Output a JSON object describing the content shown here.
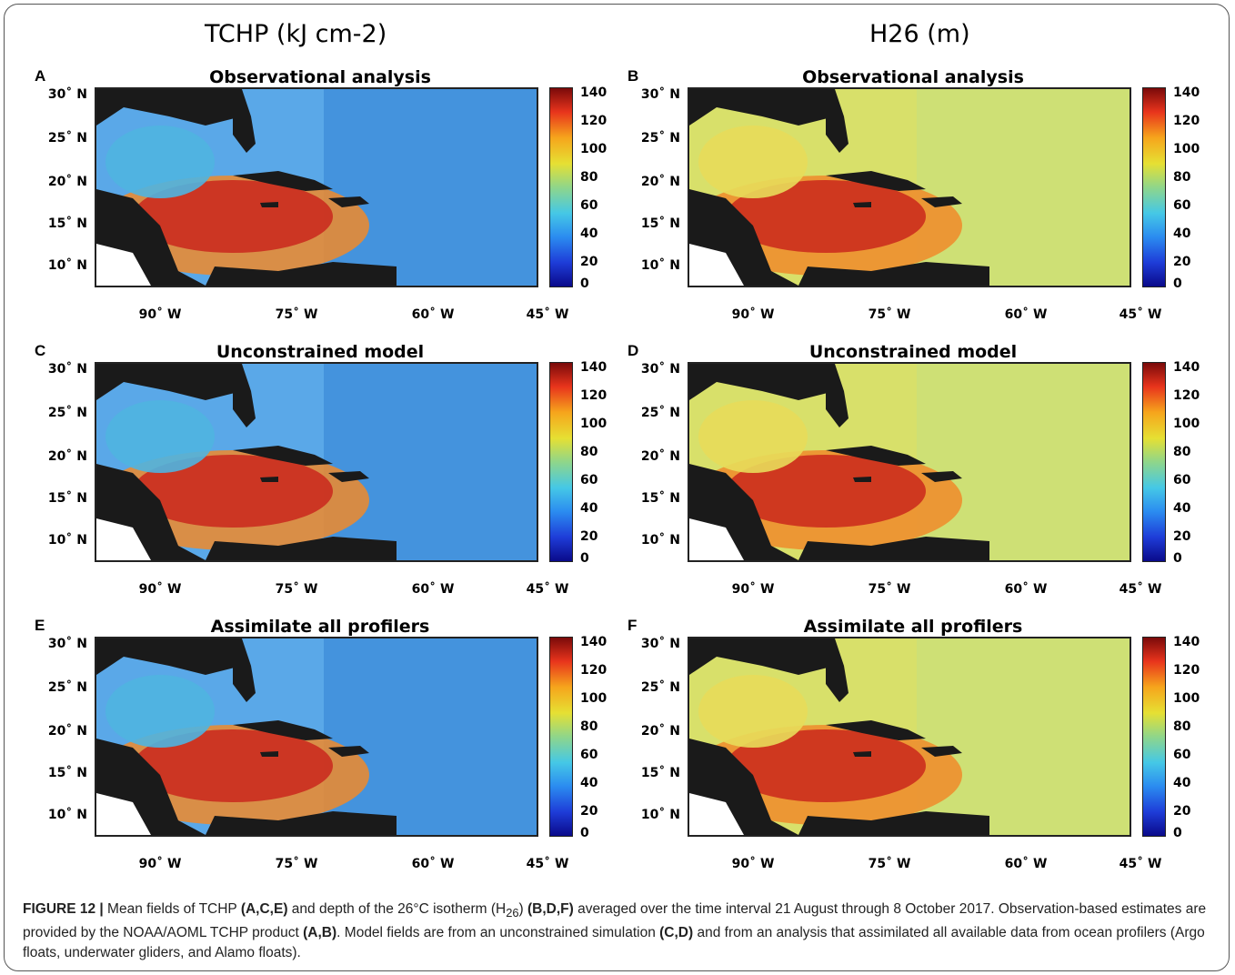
{
  "column_titles": {
    "left": "TCHP (kJ cm-2)",
    "right": "H26 (m)"
  },
  "panels": [
    {
      "label": "A",
      "title": "Observational analysis"
    },
    {
      "label": "B",
      "title": "Observational analysis"
    },
    {
      "label": "C",
      "title": "Unconstrained model"
    },
    {
      "label": "D",
      "title": "Unconstrained model"
    },
    {
      "label": "E",
      "title": "Assimilate all profilers"
    },
    {
      "label": "F",
      "title": "Assimilate all profilers"
    }
  ],
  "lat_ticks": [
    "30˚ N",
    "25˚ N",
    "20˚ N",
    "15˚ N",
    "10˚ N"
  ],
  "lon_ticks": [
    "90˚ W",
    "75˚ W",
    "60˚ W",
    "45˚ W"
  ],
  "colorbar_ticks": [
    "140",
    "120",
    "100",
    "80",
    "60",
    "40",
    "20",
    "0"
  ],
  "colorbar": {
    "min": 0,
    "max": 140,
    "colors": [
      "#0a0a8a",
      "#1e3cd8",
      "#2b8cf0",
      "#45c8e6",
      "#8fd68a",
      "#e6e033",
      "#f6a51c",
      "#e8341c",
      "#7a0a0a"
    ]
  },
  "caption": {
    "figure_label": "FIGURE 12 |",
    "t1": " Mean fields of TCHP ",
    "b1": "(A,C,E)",
    "t2": " and depth of the 26°C isotherm (H",
    "sub": "26",
    "t3": ") ",
    "b2": "(B,D,F)",
    "t4": " averaged over the time interval 21 August through 8 October 2017. Observation-based estimates are provided by the NOAA/AOML TCHP product ",
    "b3": "(A,B)",
    "t5": ". Model fields are from an unconstrained simulation ",
    "b4": "(C,D)",
    "t6": " and from an analysis that assimilated all available data from ocean profilers (Argo floats, underwater gliders, and Alamo floats)."
  }
}
